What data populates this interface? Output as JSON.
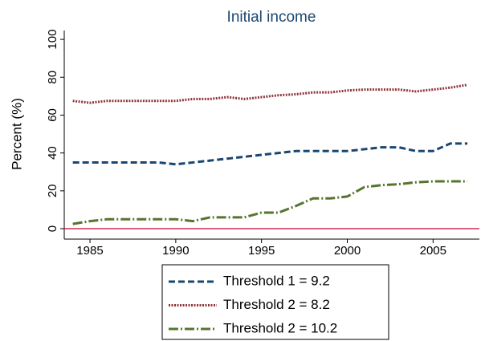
{
  "chart_data": {
    "type": "line",
    "title": "Initial income",
    "y_label": "Percent (%)",
    "x": [
      1984,
      1985,
      1986,
      1987,
      1988,
      1989,
      1990,
      1991,
      1992,
      1993,
      1994,
      1995,
      1996,
      1997,
      1998,
      1999,
      2000,
      2001,
      2002,
      2003,
      2004,
      2005,
      2006,
      2007
    ],
    "series": [
      {
        "name": "Threshold 1 = 9.2",
        "color": "#1a476f",
        "dash": "8 4",
        "values": [
          35,
          35,
          35,
          35,
          35,
          35,
          34,
          35,
          36,
          37,
          38,
          39,
          40,
          41,
          41,
          41,
          41,
          42,
          43,
          43,
          41,
          41,
          45,
          45
        ]
      },
      {
        "name": "Threshold 2 = 8.2",
        "color": "#90353b",
        "dash": "2 1.5",
        "values": [
          67.5,
          66.5,
          67.5,
          67.5,
          67.5,
          67.5,
          67.5,
          68.5,
          68.5,
          69.5,
          68.5,
          69.5,
          70.5,
          71,
          72,
          72,
          73,
          73.5,
          73.5,
          73.5,
          72.5,
          73.5,
          74.5,
          76
        ]
      },
      {
        "name": "Threshold 2 = 10.2",
        "color": "#55752f",
        "dash": "12 3 2 3",
        "values": [
          2.5,
          4,
          5,
          5,
          5,
          5,
          5,
          4,
          6,
          6,
          6,
          8.5,
          8.5,
          12,
          16,
          16,
          17,
          22,
          23,
          23.5,
          24.5,
          25,
          25,
          25
        ]
      }
    ],
    "xlim": [
      1983.5,
      2007.7
    ],
    "xticks": [
      1985,
      1990,
      1995,
      2000,
      2005
    ],
    "ylim": [
      -5.5,
      104.7
    ],
    "yticks": [
      0,
      20,
      40,
      60,
      80,
      100
    ],
    "hline": 0,
    "hline_color": "#c10534"
  }
}
